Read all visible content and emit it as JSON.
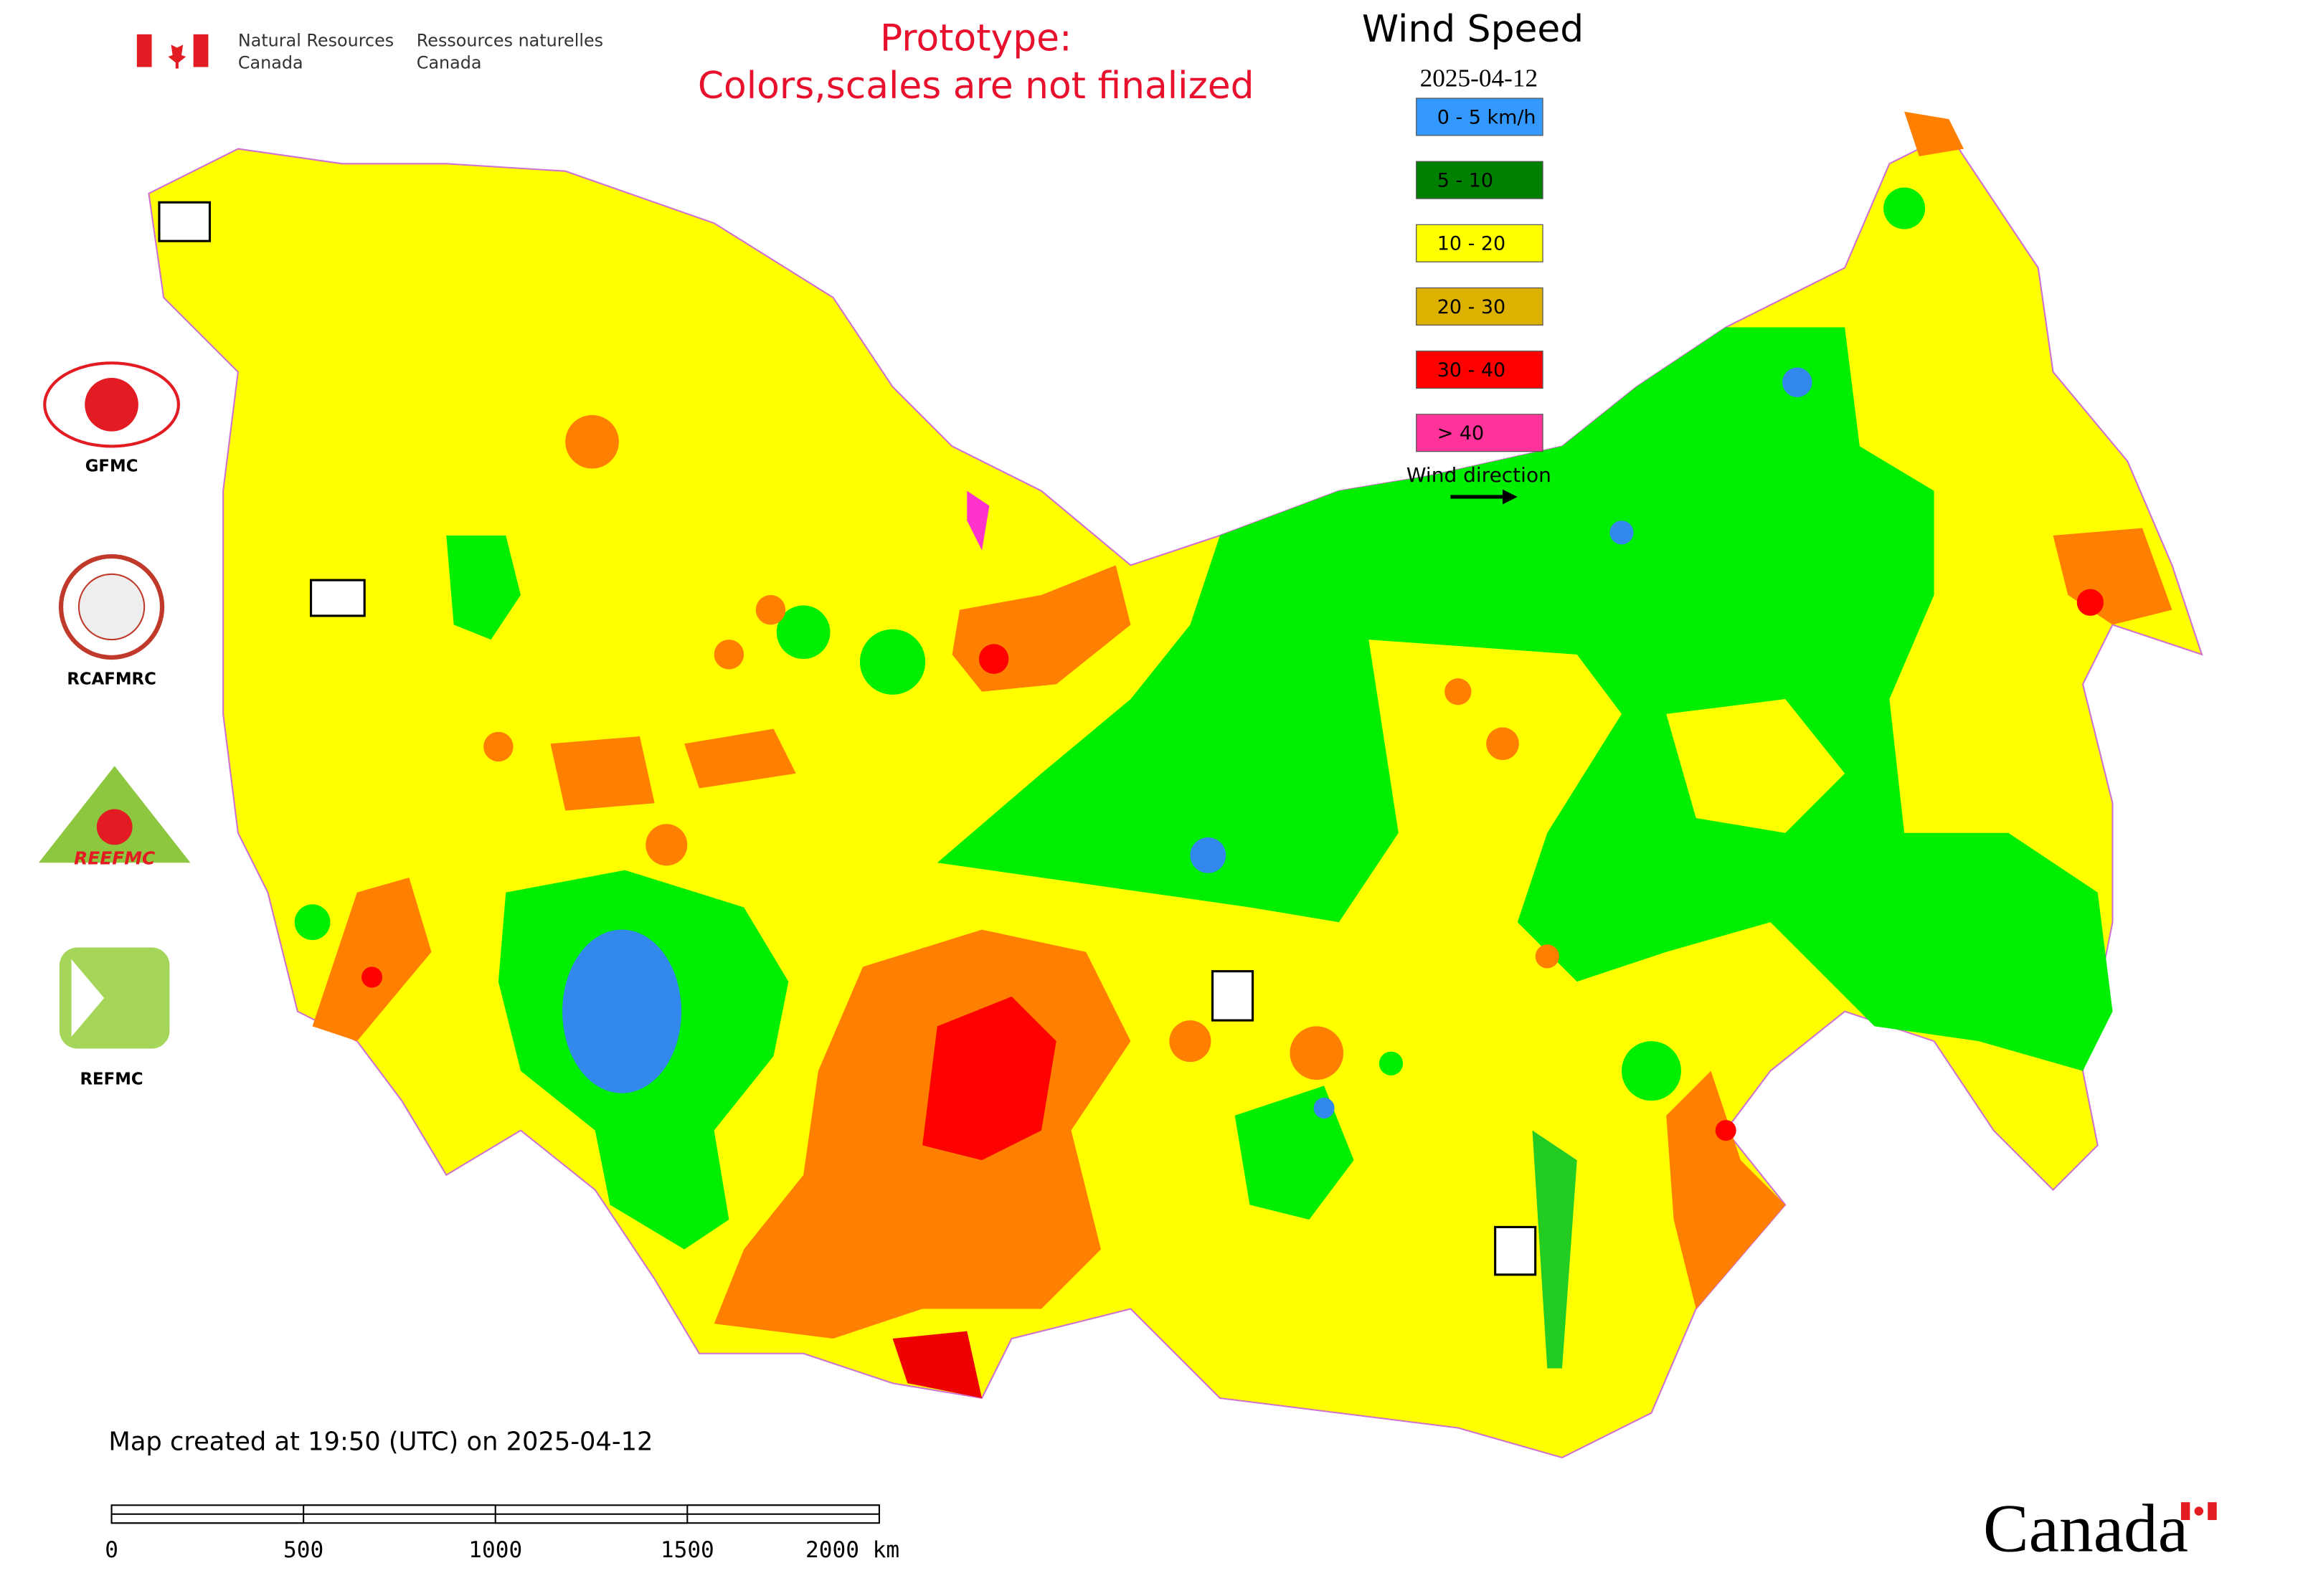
{
  "header": {
    "agency_en_line1": "Natural Resources",
    "agency_en_line2": "Canada",
    "agency_fr_line1": "Ressources naturelles",
    "agency_fr_line2": "Canada"
  },
  "notice": {
    "line1": "Prototype:",
    "line2": "Colors,scales are not finalized"
  },
  "legend": {
    "title": "Wind Speed",
    "date": "2025-04-12",
    "items": [
      {
        "label": "0 - 5 km/h",
        "color": "#3399ff"
      },
      {
        "label": "5 - 10",
        "color": "#008000"
      },
      {
        "label": "10 - 20",
        "color": "#ffff00"
      },
      {
        "label": "20 - 30",
        "color": "#ddb100"
      },
      {
        "label": "30 - 40",
        "color": "#ff0000"
      },
      {
        "label": "> 40",
        "color": "#ff3399"
      }
    ],
    "wind_direction": "Wind direction"
  },
  "logos": [
    {
      "label": "GFMC"
    },
    {
      "label": "RCAFMRC"
    },
    {
      "label": "REEFMC"
    },
    {
      "label": "REFMC"
    }
  ],
  "footer": {
    "created": "Map created at 19:50 (UTC) on 2025-04-12",
    "scale_labels": [
      "0",
      "500",
      "1000",
      "1500",
      "2000 km"
    ],
    "wordmark": "Canada"
  }
}
